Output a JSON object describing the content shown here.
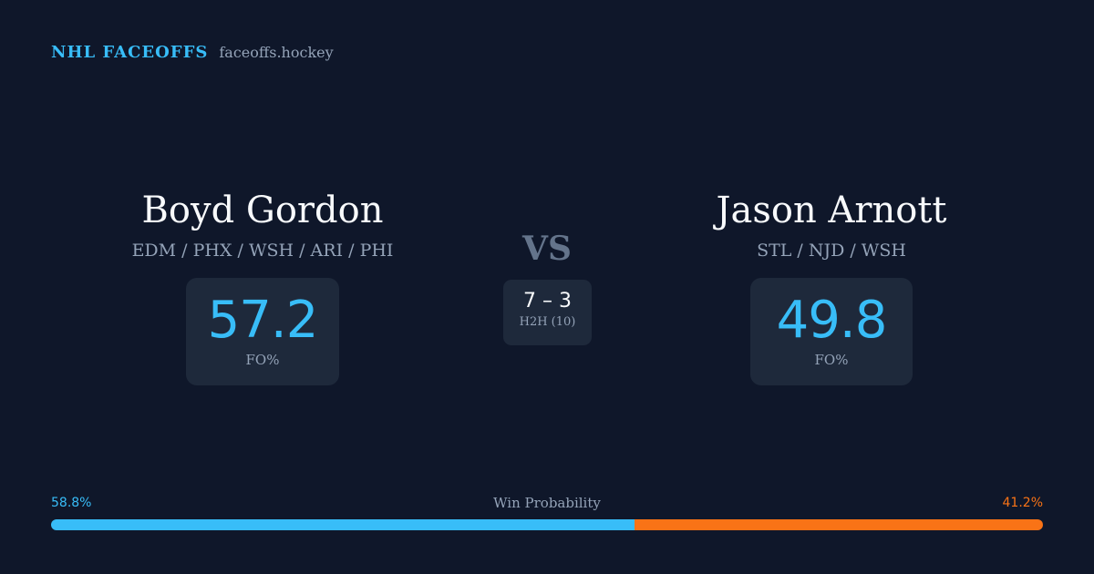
{
  "colors": {
    "background": "#0f172a",
    "card": "#1e293b",
    "accent_blue": "#38bdf8",
    "accent_orange": "#f97316",
    "text_primary": "#f8fafc",
    "text_muted": "#94a3b8",
    "vs_color": "#64748b"
  },
  "brand": {
    "title": "NHL FACEOFFS",
    "domain": "faceoffs.hockey"
  },
  "player_left": {
    "name": "Boyd Gordon",
    "teams": "EDM / PHX / WSH / ARI / PHI",
    "stat_value": "57.2",
    "stat_label": "FO%"
  },
  "player_right": {
    "name": "Jason Arnott",
    "teams": "STL / NJD / WSH",
    "stat_value": "49.8",
    "stat_label": "FO%"
  },
  "versus": {
    "label": "VS",
    "h2h_score": "7 – 3",
    "h2h_label": "H2H (10)"
  },
  "win_probability": {
    "title": "Win Probability",
    "left_label": "58.8%",
    "right_label": "41.2%",
    "left_value": 58.8,
    "right_value": 41.2
  }
}
